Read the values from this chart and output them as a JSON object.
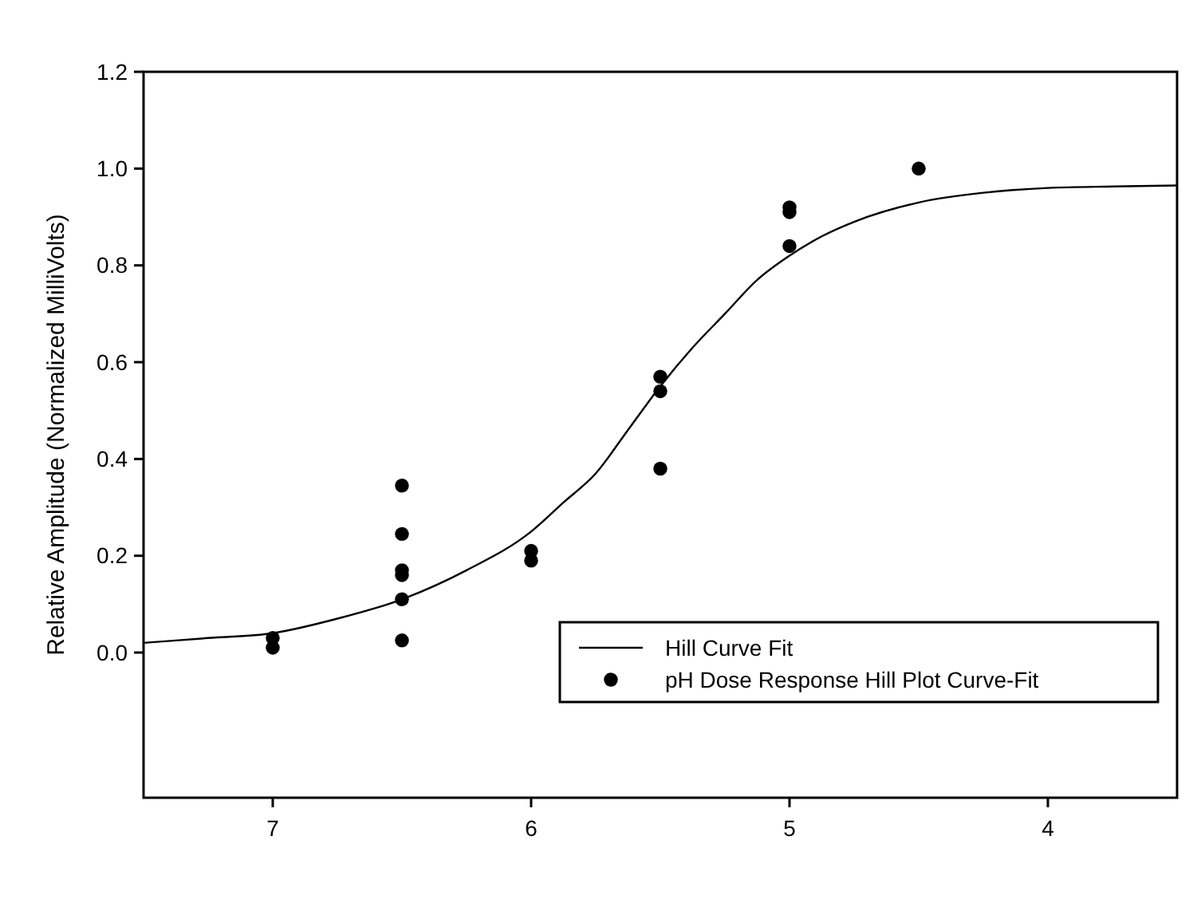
{
  "chart_data": {
    "type": "scatter",
    "ylabel": "Relative Amplitude (Normalized MilliVolts)",
    "xlim": [
      7.5,
      3.5
    ],
    "xticks": [
      7,
      6,
      5,
      4
    ],
    "ylim": [
      -0.3,
      1.2
    ],
    "yticks": [
      {
        "value": 0,
        "label": "0.0"
      },
      0.2,
      0.4,
      0.6,
      0.8,
      {
        "value": 1,
        "label": "1.0"
      },
      1.2
    ],
    "grid": false,
    "legend": "bottom right",
    "series": [
      {
        "name": "Hill Curve Fit",
        "type": "line",
        "color": "#000000",
        "marker": "none",
        "line_style": "solid",
        "x": [
          7.5,
          7.25,
          7,
          6.75,
          6.5,
          6.25,
          6,
          5.875,
          5.75,
          5.625,
          5.5,
          5.375,
          5.25,
          5.125,
          5,
          4.875,
          4.75,
          4.5,
          4.25,
          4,
          3.75,
          3.5
        ],
        "values": [
          0.02,
          0.03,
          0.04,
          0.07,
          0.11,
          0.17,
          0.25,
          0.31,
          0.37,
          0.46,
          0.55,
          0.63,
          0.7,
          0.77,
          0.82,
          0.86,
          0.89,
          0.93,
          0.95,
          0.96,
          0.963,
          0.965
        ]
      },
      {
        "name": "pH Dose Response Hill Plot Curve-Fit",
        "color": "#000000",
        "marker": "circle",
        "x": [
          7,
          7,
          6.5,
          6.5,
          6.5,
          6.5,
          6.5,
          6.5,
          6,
          6,
          5.5,
          5.5,
          5.5,
          5,
          5,
          5,
          4.5
        ],
        "values": [
          0.03,
          0.01,
          0.345,
          0.245,
          0.17,
          0.16,
          0.11,
          0.025,
          0.21,
          0.19,
          0.57,
          0.54,
          0.38,
          0.92,
          0.91,
          0.84,
          1.0
        ]
      }
    ]
  }
}
